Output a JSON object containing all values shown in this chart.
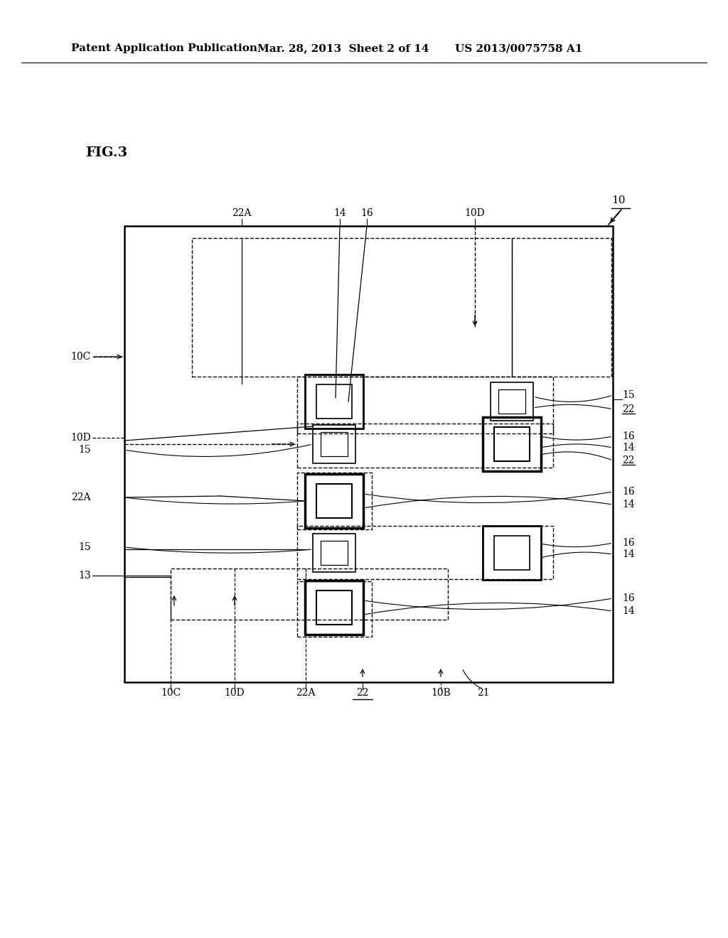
{
  "bg_color": "#ffffff",
  "header_text": "Patent Application Publication",
  "header_date": "Mar. 28, 2013  Sheet 2 of 14",
  "header_patent": "US 2013/0075758 A1",
  "fig_label": "FIG.3"
}
